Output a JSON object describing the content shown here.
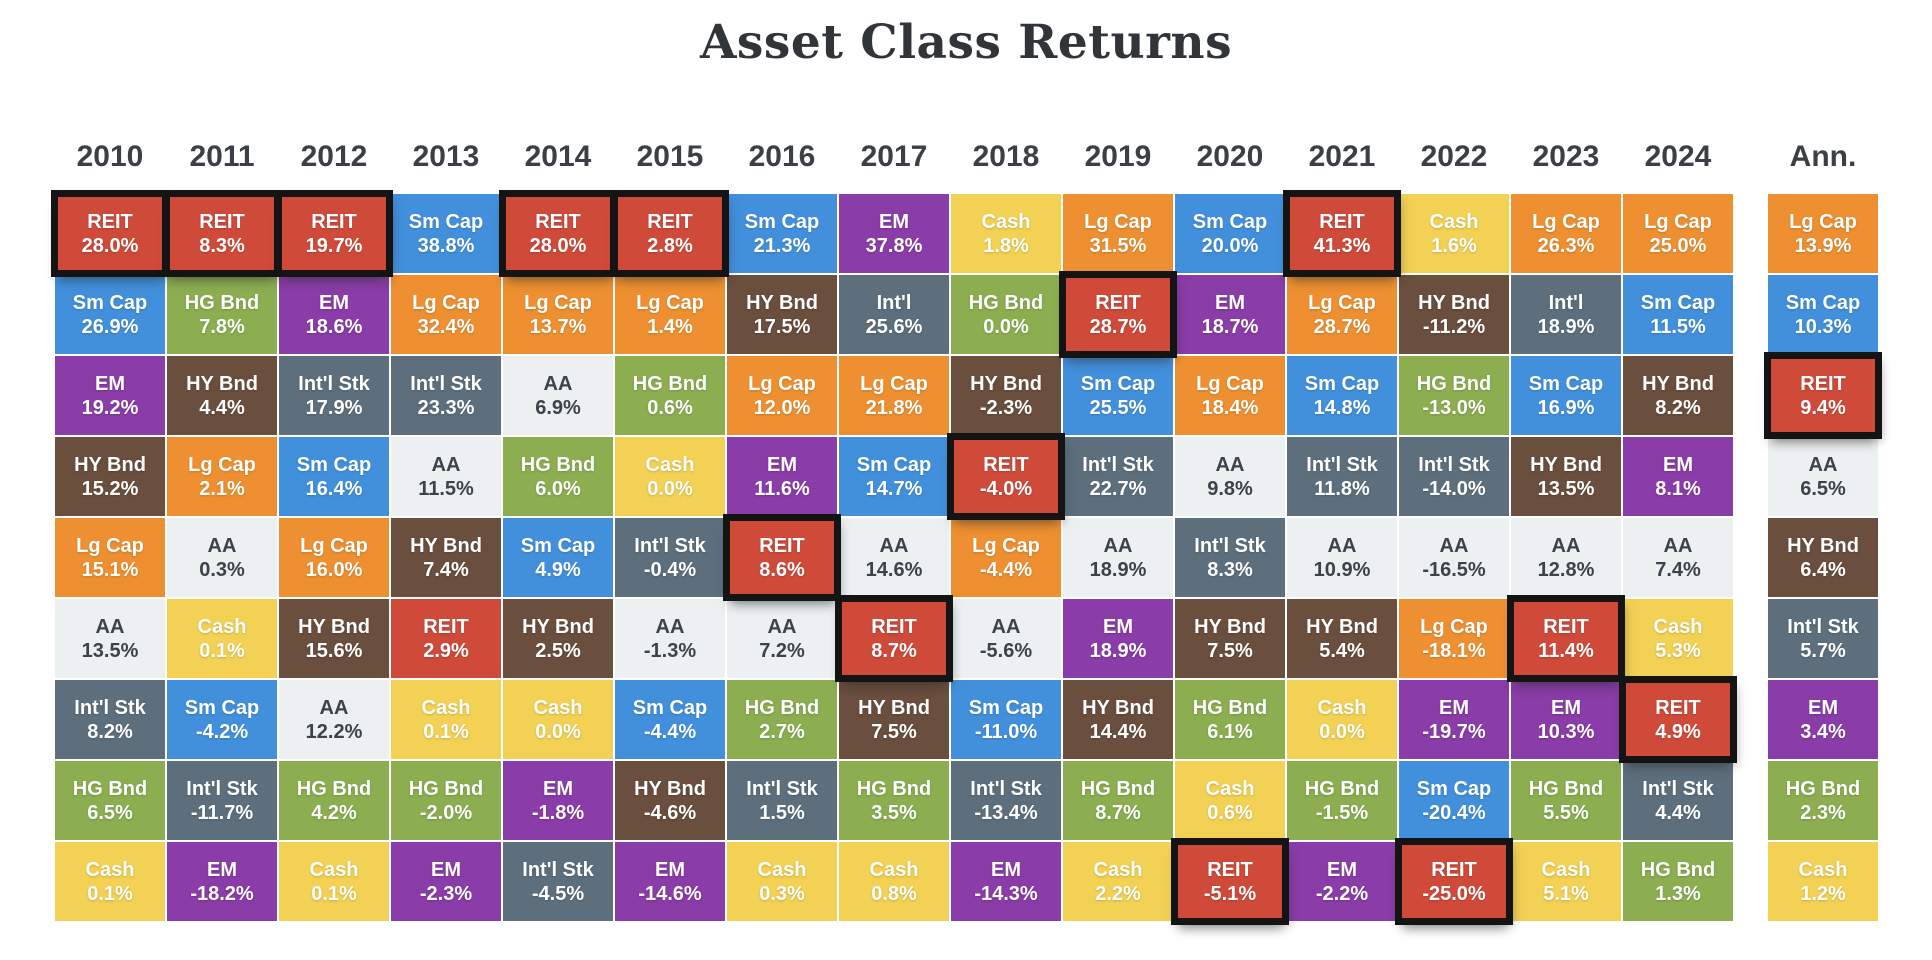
{
  "title": "Asset Class Returns",
  "chart_data": {
    "type": "heatmap",
    "title": "Asset Class Returns",
    "description_of_layout": "periodic-table of annual asset class returns, each column ranked best to worst, REIT cells outlined in black",
    "columns": [
      "2010",
      "2011",
      "2012",
      "2013",
      "2014",
      "2015",
      "2016",
      "2017",
      "2018",
      "2019",
      "2020",
      "2021",
      "2022",
      "2023",
      "2024",
      "Ann."
    ],
    "highlight_asset": "REIT",
    "highlight_border_color": "#141414",
    "header_text_color": "#3b4046",
    "title_text_color": "#31353a",
    "asset_colors": {
      "REIT": {
        "bg": "#d04a3a",
        "fg": "#ffffff"
      },
      "Sm Cap": {
        "bg": "#4290dc",
        "fg": "#ffffff"
      },
      "EM": {
        "bg": "#8a3ca8",
        "fg": "#ffffff"
      },
      "HY Bnd": {
        "bg": "#6a4e3e",
        "fg": "#ffffff"
      },
      "Lg Cap": {
        "bg": "#ee9031",
        "fg": "#ffffff"
      },
      "AA": {
        "bg": "#edf0f1",
        "fg": "#3c434b"
      },
      "Cash": {
        "bg": "#f3d154",
        "fg": "#ffffff"
      },
      "Int'l Stk": {
        "bg": "#5d6f7d",
        "fg": "#ffffff"
      },
      "Int'l": {
        "bg": "#5d6f7d",
        "fg": "#ffffff"
      },
      "HG Bnd": {
        "bg": "#8cae51",
        "fg": "#ffffff"
      }
    },
    "cells": {
      "2010": [
        [
          "REIT",
          28.0,
          true
        ],
        [
          "Sm Cap",
          26.9,
          false
        ],
        [
          "EM",
          19.2,
          false
        ],
        [
          "HY Bnd",
          15.2,
          false
        ],
        [
          "Lg Cap",
          15.1,
          false
        ],
        [
          "AA",
          13.5,
          false
        ],
        [
          "Int'l Stk",
          8.2,
          false
        ],
        [
          "HG Bnd",
          6.5,
          false
        ],
        [
          "Cash",
          0.1,
          false
        ]
      ],
      "2011": [
        [
          "REIT",
          8.3,
          true
        ],
        [
          "HG Bnd",
          7.8,
          false
        ],
        [
          "HY Bnd",
          4.4,
          false
        ],
        [
          "Lg Cap",
          2.1,
          false
        ],
        [
          "AA",
          0.3,
          false
        ],
        [
          "Cash",
          0.1,
          false
        ],
        [
          "Sm Cap",
          -4.2,
          false
        ],
        [
          "Int'l Stk",
          -11.7,
          false
        ],
        [
          "EM",
          -18.2,
          false
        ]
      ],
      "2012": [
        [
          "REIT",
          19.7,
          true
        ],
        [
          "EM",
          18.6,
          false
        ],
        [
          "Int'l Stk",
          17.9,
          false
        ],
        [
          "Sm Cap",
          16.4,
          false
        ],
        [
          "Lg Cap",
          16.0,
          false
        ],
        [
          "HY Bnd",
          15.6,
          false
        ],
        [
          "AA",
          12.2,
          false
        ],
        [
          "HG Bnd",
          4.2,
          false
        ],
        [
          "Cash",
          0.1,
          false
        ]
      ],
      "2013": [
        [
          "Sm Cap",
          38.8,
          false
        ],
        [
          "Lg Cap",
          32.4,
          false
        ],
        [
          "Int'l Stk",
          23.3,
          false
        ],
        [
          "AA",
          11.5,
          false
        ],
        [
          "HY Bnd",
          7.4,
          false
        ],
        [
          "REIT",
          2.9,
          false
        ],
        [
          "Cash",
          0.1,
          false
        ],
        [
          "HG Bnd",
          -2.0,
          false
        ],
        [
          "EM",
          -2.3,
          false
        ]
      ],
      "2014": [
        [
          "REIT",
          28.0,
          true
        ],
        [
          "Lg Cap",
          13.7,
          false
        ],
        [
          "AA",
          6.9,
          false
        ],
        [
          "HG Bnd",
          6.0,
          false
        ],
        [
          "Sm Cap",
          4.9,
          false
        ],
        [
          "HY Bnd",
          2.5,
          false
        ],
        [
          "Cash",
          0.0,
          false
        ],
        [
          "EM",
          -1.8,
          false
        ],
        [
          "Int'l Stk",
          -4.5,
          false
        ]
      ],
      "2015": [
        [
          "REIT",
          2.8,
          true
        ],
        [
          "Lg Cap",
          1.4,
          false
        ],
        [
          "HG Bnd",
          0.6,
          false
        ],
        [
          "Cash",
          0.0,
          false
        ],
        [
          "Int'l Stk",
          -0.4,
          false
        ],
        [
          "AA",
          -1.3,
          false
        ],
        [
          "Sm Cap",
          -4.4,
          false
        ],
        [
          "HY Bnd",
          -4.6,
          false
        ],
        [
          "EM",
          -14.6,
          false
        ]
      ],
      "2016": [
        [
          "Sm Cap",
          21.3,
          false
        ],
        [
          "HY Bnd",
          17.5,
          false
        ],
        [
          "Lg Cap",
          12.0,
          false
        ],
        [
          "EM",
          11.6,
          false
        ],
        [
          "REIT",
          8.6,
          true
        ],
        [
          "AA",
          7.2,
          false
        ],
        [
          "HG Bnd",
          2.7,
          false
        ],
        [
          "Int'l Stk",
          1.5,
          false
        ],
        [
          "Cash",
          0.3,
          false
        ]
      ],
      "2017": [
        [
          "EM",
          37.8,
          false
        ],
        [
          "Int'l",
          25.6,
          false
        ],
        [
          "Lg Cap",
          21.8,
          false
        ],
        [
          "Sm Cap",
          14.7,
          false
        ],
        [
          "AA",
          14.6,
          false
        ],
        [
          "REIT",
          8.7,
          true
        ],
        [
          "HY Bnd",
          7.5,
          false
        ],
        [
          "HG Bnd",
          3.5,
          false
        ],
        [
          "Cash",
          0.8,
          false
        ]
      ],
      "2018": [
        [
          "Cash",
          1.8,
          false
        ],
        [
          "HG Bnd",
          0.0,
          false
        ],
        [
          "HY Bnd",
          -2.3,
          false
        ],
        [
          "REIT",
          -4.0,
          true
        ],
        [
          "Lg Cap",
          -4.4,
          false
        ],
        [
          "AA",
          -5.6,
          false
        ],
        [
          "Sm Cap",
          -11.0,
          false
        ],
        [
          "Int'l Stk",
          -13.4,
          false
        ],
        [
          "EM",
          -14.3,
          false
        ]
      ],
      "2019": [
        [
          "Lg Cap",
          31.5,
          false
        ],
        [
          "REIT",
          28.7,
          true
        ],
        [
          "Sm Cap",
          25.5,
          false
        ],
        [
          "Int'l Stk",
          22.7,
          false
        ],
        [
          "AA",
          18.9,
          false
        ],
        [
          "EM",
          18.9,
          false
        ],
        [
          "HY Bnd",
          14.4,
          false
        ],
        [
          "HG Bnd",
          8.7,
          false
        ],
        [
          "Cash",
          2.2,
          false
        ]
      ],
      "2020": [
        [
          "Sm Cap",
          20.0,
          false
        ],
        [
          "EM",
          18.7,
          false
        ],
        [
          "Lg Cap",
          18.4,
          false
        ],
        [
          "AA",
          9.8,
          false
        ],
        [
          "Int'l Stk",
          8.3,
          false
        ],
        [
          "HY Bnd",
          7.5,
          false
        ],
        [
          "HG Bnd",
          6.1,
          false
        ],
        [
          "Cash",
          0.6,
          false
        ],
        [
          "REIT",
          -5.1,
          true
        ]
      ],
      "2021": [
        [
          "REIT",
          41.3,
          true
        ],
        [
          "Lg Cap",
          28.7,
          false
        ],
        [
          "Sm Cap",
          14.8,
          false
        ],
        [
          "Int'l Stk",
          11.8,
          false
        ],
        [
          "AA",
          10.9,
          false
        ],
        [
          "HY Bnd",
          5.4,
          false
        ],
        [
          "Cash",
          0.0,
          false
        ],
        [
          "HG Bnd",
          -1.5,
          false
        ],
        [
          "EM",
          -2.2,
          false
        ]
      ],
      "2022": [
        [
          "Cash",
          1.6,
          false
        ],
        [
          "HY Bnd",
          -11.2,
          false
        ],
        [
          "HG Bnd",
          -13.0,
          false
        ],
        [
          "Int'l Stk",
          -14.0,
          false
        ],
        [
          "AA",
          -16.5,
          false
        ],
        [
          "Lg Cap",
          -18.1,
          false
        ],
        [
          "EM",
          -19.7,
          false
        ],
        [
          "Sm Cap",
          -20.4,
          false
        ],
        [
          "REIT",
          -25.0,
          true
        ]
      ],
      "2023": [
        [
          "Lg Cap",
          26.3,
          false
        ],
        [
          "Int'l",
          18.9,
          false
        ],
        [
          "Sm Cap",
          16.9,
          false
        ],
        [
          "HY Bnd",
          13.5,
          false
        ],
        [
          "AA",
          12.8,
          false
        ],
        [
          "REIT",
          11.4,
          true
        ],
        [
          "EM",
          10.3,
          false
        ],
        [
          "HG Bnd",
          5.5,
          false
        ],
        [
          "Cash",
          5.1,
          false
        ]
      ],
      "2024": [
        [
          "Lg Cap",
          25.0,
          false
        ],
        [
          "Sm Cap",
          11.5,
          false
        ],
        [
          "HY Bnd",
          8.2,
          false
        ],
        [
          "EM",
          8.1,
          false
        ],
        [
          "AA",
          7.4,
          false
        ],
        [
          "Cash",
          5.3,
          false
        ],
        [
          "REIT",
          4.9,
          true
        ],
        [
          "Int'l Stk",
          4.4,
          false
        ],
        [
          "HG Bnd",
          1.3,
          false
        ]
      ],
      "Ann.": [
        [
          "Lg Cap",
          13.9,
          false
        ],
        [
          "Sm Cap",
          10.3,
          false
        ],
        [
          "REIT",
          9.4,
          true
        ],
        [
          "AA",
          6.5,
          false
        ],
        [
          "HY Bnd",
          6.4,
          false
        ],
        [
          "Int'l Stk",
          5.7,
          false
        ],
        [
          "EM",
          3.4,
          false
        ],
        [
          "HG Bnd",
          2.3,
          false
        ],
        [
          "Cash",
          1.2,
          false
        ]
      ]
    }
  }
}
